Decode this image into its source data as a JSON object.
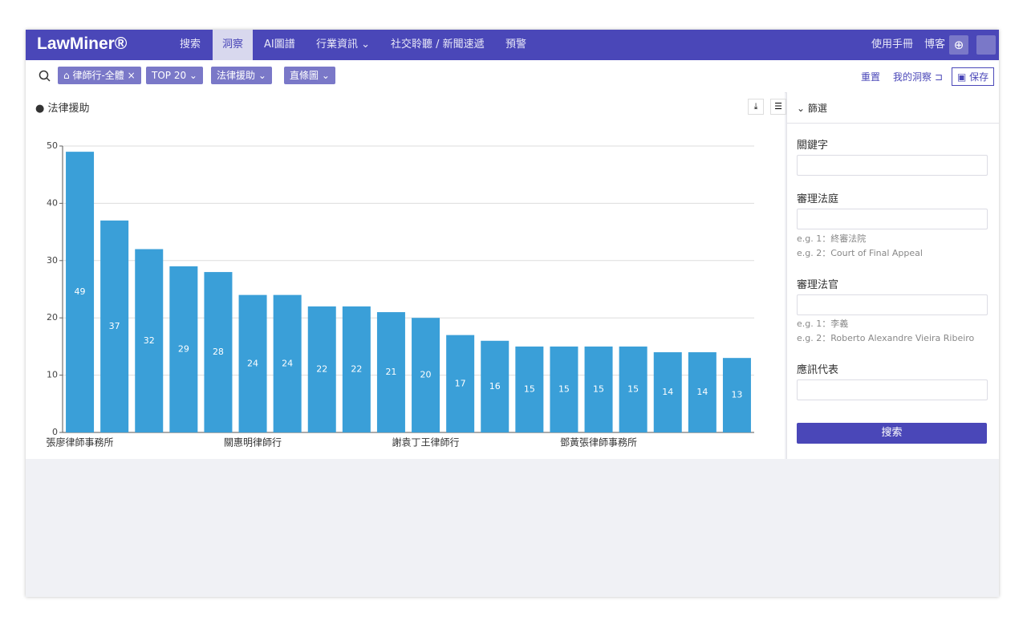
{
  "nav": {
    "logo": "LawMiner®",
    "items": [
      "搜索",
      "洞察",
      "AI圖譜",
      "行業資訊",
      "社交聆聽 / 新聞速遞",
      "預警"
    ],
    "right": [
      "使用手冊",
      "博客"
    ]
  },
  "toolbar": {
    "filters": [
      "律師行-全體",
      "TOP 20",
      "法律援助",
      "直條圖"
    ],
    "actions": [
      "重置",
      "我的洞察",
      "保存"
    ]
  },
  "panel": {
    "title": "法律援助"
  },
  "sidebar": {
    "title": "篩選",
    "fields": [
      {
        "label": "關鍵字"
      },
      {
        "label": "審理法庭",
        "hints": [
          "e.g. 1：終審法院",
          "e.g. 2：Court of Final Appeal"
        ]
      },
      {
        "label": "審理法官",
        "hints": [
          "e.g. 1：李義",
          "e.g. 2：Roberto Alexandre Vieira Ribeiro"
        ]
      },
      {
        "label": "應訊代表"
      }
    ],
    "button": "搜索"
  },
  "chart_data": {
    "type": "bar",
    "color": "#3a9fd8",
    "categories": [
      "張廖律師事務所",
      null,
      null,
      null,
      null,
      "關惠明律師行",
      null,
      null,
      null,
      null,
      "謝袁丁王律師行",
      null,
      null,
      null,
      null,
      "鄧黃張律師事務所",
      null,
      null,
      null,
      null
    ],
    "values": [
      49,
      37,
      32,
      29,
      28,
      24,
      24,
      22,
      22,
      21,
      20,
      17,
      16,
      15,
      15,
      15,
      15,
      14,
      14,
      13
    ],
    "ylim": [
      0,
      50
    ],
    "yticks": [
      0,
      10,
      20,
      30,
      40,
      50
    ],
    "grid": true
  }
}
